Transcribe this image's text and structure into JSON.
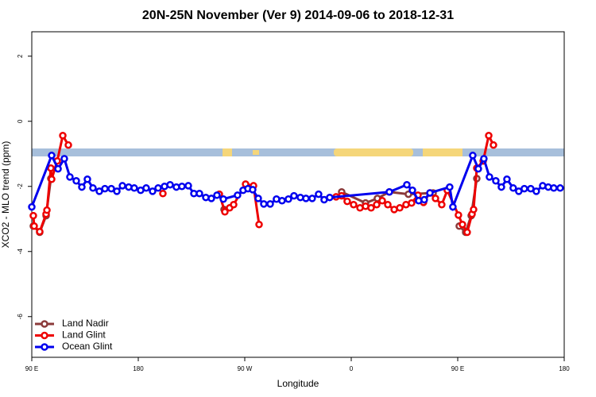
{
  "chart_data": {
    "type": "line",
    "title": "20N-25N November (Ver 9)   2014-09-06 to 2018-12-31",
    "xlabel": "Longitude",
    "ylabel": "XCO2 - MLO trend (ppm)",
    "xlim": [
      90,
      540
    ],
    "ylim": [
      -7.25,
      2.75
    ],
    "xticks": [
      {
        "value": 90,
        "label": "90 E"
      },
      180,
      {
        "value": 270,
        "label": "90 W"
      },
      {
        "value": 360,
        "label": "0"
      },
      {
        "value": 450,
        "label": "90 E"
      },
      {
        "value": 540,
        "label": "180"
      }
    ],
    "yticks": [
      -6,
      -4,
      -2,
      0,
      2
    ],
    "legend": "bottom-left",
    "series": [
      {
        "name": "Land Nadir",
        "color": "#8b3a3a",
        "x": [
          91.3,
          96.7,
          102.1,
          106.1,
          180,
          252.5,
          262,
          271.3,
          300,
          351.9,
          372.1,
          382.1,
          392.2,
          408.3,
          429.2,
          440,
          451.3,
          456.7,
          461.4,
          466.1
        ],
        "values": [
          -3.22,
          -3.41,
          -2.9,
          -1.76,
          null,
          -2.71,
          null,
          -1.98,
          null,
          -2.17,
          -2.51,
          -2.37,
          -2.17,
          -2.24,
          -2.2,
          null,
          -3.22,
          -3.41,
          -2.9,
          -1.76
        ]
      },
      {
        "name": "Land Glint",
        "color": "#ee0000",
        "x": [
          91.3,
          92,
          96.7,
          102.1,
          102.8,
          106.1,
          106.8,
          111.5,
          116.2,
          120.9,
          160,
          200.8,
          230,
          248.5,
          253.2,
          257.2,
          260.6,
          270.7,
          277.4,
          282.1,
          320,
          347.2,
          351.9,
          356.6,
          362,
          367.4,
          372.1,
          376.8,
          381.5,
          386.2,
          390.9,
          396.3,
          401,
          406.3,
          411,
          416.4,
          421.1,
          426.5,
          431.2,
          436.5,
          441.2,
          450.6,
          454,
          458,
          462.1,
          463.4,
          466.1,
          471.5,
          476.2,
          480.2
        ],
        "values": [
          -2.9,
          -3.22,
          -3.39,
          -2.85,
          -2.73,
          -1.44,
          -1.78,
          -1.22,
          -0.44,
          -0.73,
          null,
          -2.22,
          null,
          -2.24,
          -2.78,
          -2.66,
          -2.56,
          -1.93,
          -1.98,
          -3.17,
          null,
          -2.32,
          -2.29,
          -2.46,
          -2.56,
          -2.66,
          -2.61,
          -2.66,
          -2.56,
          -2.44,
          -2.56,
          -2.71,
          -2.66,
          -2.56,
          -2.51,
          -2.27,
          -2.49,
          -2.2,
          -2.37,
          -2.56,
          -2.12,
          -2.88,
          -3.17,
          -3.41,
          -2.85,
          -2.71,
          -1.44,
          -1.22,
          -0.44,
          -0.73
        ]
      },
      {
        "name": "Ocean Glint",
        "color": "#0000ee",
        "x": [
          90,
          106.8,
          112.2,
          117.5,
          122.2,
          127.6,
          132.3,
          137,
          141.7,
          147.1,
          151.8,
          157.2,
          161.9,
          166.6,
          171.9,
          176.6,
          182,
          186.7,
          192.1,
          196.8,
          202.2,
          206.9,
          212.2,
          216.9,
          222.3,
          227,
          231.7,
          237.1,
          241.8,
          246.5,
          251.9,
          263.9,
          268.6,
          272.7,
          276.7,
          281.4,
          286.1,
          291.5,
          296.8,
          301.5,
          306.9,
          311.6,
          317,
          321.7,
          327,
          332.4,
          337.1,
          341.8,
          392.2,
          407,
          411.7,
          417,
          421.7,
          426.5,
          443.2,
          445.9,
          462.7,
          467.4,
          472.1,
          476.8,
          482.2,
          486.9,
          491.6,
          496.9,
          501.6,
          506.3,
          511.7,
          516.4,
          521.8,
          526.5,
          531.2,
          536.6
        ],
        "values": [
          -2.63,
          -1.05,
          -1.46,
          -1.15,
          -1.71,
          -1.83,
          -2.02,
          -1.78,
          -2.05,
          -2.15,
          -2.07,
          -2.07,
          -2.15,
          -1.98,
          -2.02,
          -2.05,
          -2.12,
          -2.05,
          -2.15,
          -2.05,
          -2.0,
          -1.95,
          -2.02,
          -2.0,
          -1.98,
          -2.22,
          -2.22,
          -2.34,
          -2.37,
          -2.27,
          -2.39,
          -2.27,
          -2.12,
          -2.07,
          -2.1,
          -2.37,
          -2.54,
          -2.54,
          -2.39,
          -2.44,
          -2.39,
          -2.29,
          -2.34,
          -2.37,
          -2.37,
          -2.24,
          -2.41,
          -2.34,
          -2.17,
          -1.95,
          -2.12,
          -2.44,
          -2.41,
          -2.2,
          -2.02,
          -2.63,
          -1.05,
          -1.46,
          -1.15,
          -1.71,
          -1.83,
          -2.02,
          -1.78,
          -2.05,
          -2.15,
          -2.07,
          -2.07,
          -2.15,
          -1.98,
          -2.02,
          -2.05,
          -2.05
        ]
      }
    ]
  }
}
